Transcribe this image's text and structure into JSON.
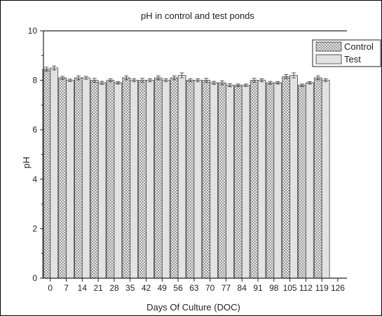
{
  "chart_data": {
    "type": "bar",
    "title": "pH in control and test ponds",
    "xlabel": "Days Of Culture (DOC)",
    "ylabel": "pH",
    "ylim": [
      0,
      10
    ],
    "yticks": [
      "0",
      "2",
      "4",
      "6",
      "8",
      "10"
    ],
    "xticks": [
      "0",
      "7",
      "14",
      "21",
      "28",
      "35",
      "42",
      "49",
      "56",
      "63",
      "70",
      "77",
      "84",
      "91",
      "98",
      "105",
      "112",
      "119",
      "126"
    ],
    "categories": [
      0,
      7,
      14,
      21,
      28,
      35,
      42,
      49,
      56,
      63,
      70,
      77,
      84,
      91,
      98,
      105,
      112,
      119
    ],
    "legend_position": "top-right",
    "grid": false,
    "series": [
      {
        "name": "Control",
        "pattern": "crosshatch",
        "values": [
          8.45,
          8.1,
          8.1,
          8.0,
          8.0,
          8.1,
          8.0,
          8.1,
          8.1,
          8.0,
          8.0,
          7.9,
          7.8,
          8.0,
          7.9,
          8.15,
          7.8,
          8.1
        ],
        "errors": [
          0.08,
          0.06,
          0.08,
          0.08,
          0.06,
          0.08,
          0.08,
          0.08,
          0.08,
          0.06,
          0.08,
          0.08,
          0.05,
          0.08,
          0.06,
          0.08,
          0.05,
          0.08
        ]
      },
      {
        "name": "Test",
        "pattern": "horizontal-lines",
        "values": [
          8.5,
          8.0,
          8.1,
          7.9,
          7.9,
          8.0,
          8.0,
          8.0,
          8.2,
          8.0,
          7.9,
          7.8,
          7.8,
          8.0,
          7.9,
          8.2,
          7.9,
          8.0
        ],
        "errors": [
          0.08,
          0.05,
          0.06,
          0.06,
          0.05,
          0.06,
          0.06,
          0.06,
          0.1,
          0.06,
          0.06,
          0.06,
          0.05,
          0.06,
          0.05,
          0.1,
          0.05,
          0.06
        ]
      }
    ]
  }
}
